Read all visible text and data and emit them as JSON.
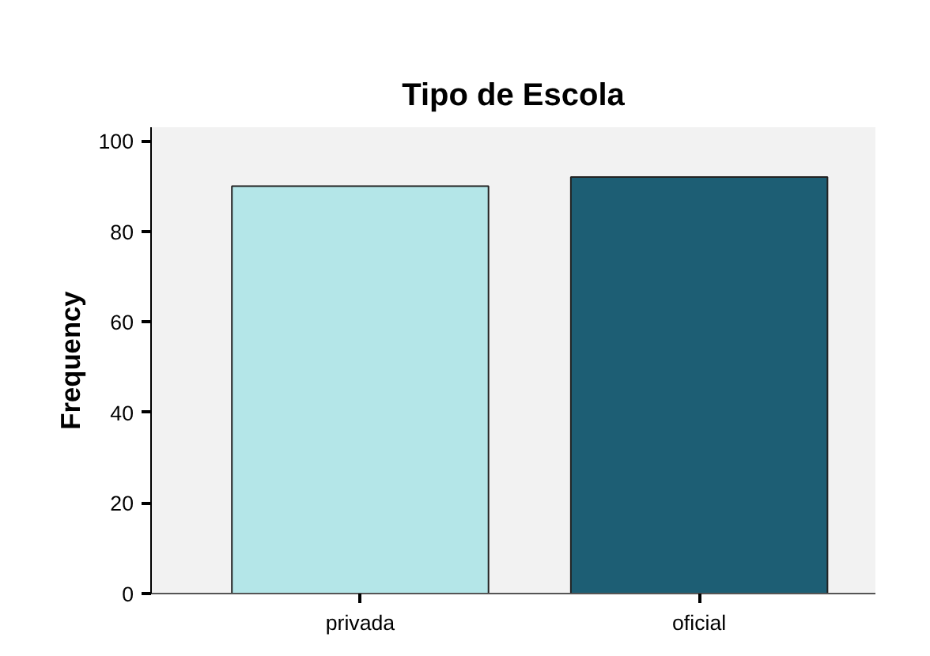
{
  "chart_data": {
    "type": "bar",
    "title": "Tipo de Escola",
    "ylabel": "Frequency",
    "categories": [
      "privada",
      "oficial"
    ],
    "values": [
      90,
      92
    ],
    "colors": [
      "#b4e6e8",
      "#1d5e74"
    ],
    "ylim": [
      0,
      103
    ],
    "yticks": [
      0,
      20,
      40,
      60,
      80,
      100
    ],
    "grid": false
  }
}
